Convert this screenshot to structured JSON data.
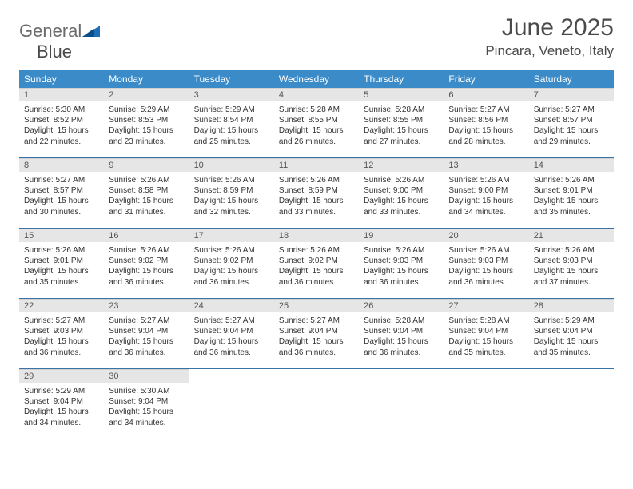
{
  "logo": {
    "general": "General",
    "blue": "Blue"
  },
  "title": "June 2025",
  "location": "Pincara, Veneto, Italy",
  "colors": {
    "header_bg": "#3b8bc9",
    "header_text": "#ffffff",
    "daynum_bg": "#e6e6e6",
    "rule": "#3b72a8",
    "logo_gray": "#6b6b6b",
    "logo_blue": "#1d6fb8",
    "title_gray": "#4a4a4a"
  },
  "day_headers": [
    "Sunday",
    "Monday",
    "Tuesday",
    "Wednesday",
    "Thursday",
    "Friday",
    "Saturday"
  ],
  "weeks": [
    [
      {
        "num": "1",
        "sunrise": "5:30 AM",
        "sunset": "8:52 PM",
        "daylight": "15 hours and 22 minutes."
      },
      {
        "num": "2",
        "sunrise": "5:29 AM",
        "sunset": "8:53 PM",
        "daylight": "15 hours and 23 minutes."
      },
      {
        "num": "3",
        "sunrise": "5:29 AM",
        "sunset": "8:54 PM",
        "daylight": "15 hours and 25 minutes."
      },
      {
        "num": "4",
        "sunrise": "5:28 AM",
        "sunset": "8:55 PM",
        "daylight": "15 hours and 26 minutes."
      },
      {
        "num": "5",
        "sunrise": "5:28 AM",
        "sunset": "8:55 PM",
        "daylight": "15 hours and 27 minutes."
      },
      {
        "num": "6",
        "sunrise": "5:27 AM",
        "sunset": "8:56 PM",
        "daylight": "15 hours and 28 minutes."
      },
      {
        "num": "7",
        "sunrise": "5:27 AM",
        "sunset": "8:57 PM",
        "daylight": "15 hours and 29 minutes."
      }
    ],
    [
      {
        "num": "8",
        "sunrise": "5:27 AM",
        "sunset": "8:57 PM",
        "daylight": "15 hours and 30 minutes."
      },
      {
        "num": "9",
        "sunrise": "5:26 AM",
        "sunset": "8:58 PM",
        "daylight": "15 hours and 31 minutes."
      },
      {
        "num": "10",
        "sunrise": "5:26 AM",
        "sunset": "8:59 PM",
        "daylight": "15 hours and 32 minutes."
      },
      {
        "num": "11",
        "sunrise": "5:26 AM",
        "sunset": "8:59 PM",
        "daylight": "15 hours and 33 minutes."
      },
      {
        "num": "12",
        "sunrise": "5:26 AM",
        "sunset": "9:00 PM",
        "daylight": "15 hours and 33 minutes."
      },
      {
        "num": "13",
        "sunrise": "5:26 AM",
        "sunset": "9:00 PM",
        "daylight": "15 hours and 34 minutes."
      },
      {
        "num": "14",
        "sunrise": "5:26 AM",
        "sunset": "9:01 PM",
        "daylight": "15 hours and 35 minutes."
      }
    ],
    [
      {
        "num": "15",
        "sunrise": "5:26 AM",
        "sunset": "9:01 PM",
        "daylight": "15 hours and 35 minutes."
      },
      {
        "num": "16",
        "sunrise": "5:26 AM",
        "sunset": "9:02 PM",
        "daylight": "15 hours and 36 minutes."
      },
      {
        "num": "17",
        "sunrise": "5:26 AM",
        "sunset": "9:02 PM",
        "daylight": "15 hours and 36 minutes."
      },
      {
        "num": "18",
        "sunrise": "5:26 AM",
        "sunset": "9:02 PM",
        "daylight": "15 hours and 36 minutes."
      },
      {
        "num": "19",
        "sunrise": "5:26 AM",
        "sunset": "9:03 PM",
        "daylight": "15 hours and 36 minutes."
      },
      {
        "num": "20",
        "sunrise": "5:26 AM",
        "sunset": "9:03 PM",
        "daylight": "15 hours and 36 minutes."
      },
      {
        "num": "21",
        "sunrise": "5:26 AM",
        "sunset": "9:03 PM",
        "daylight": "15 hours and 37 minutes."
      }
    ],
    [
      {
        "num": "22",
        "sunrise": "5:27 AM",
        "sunset": "9:03 PM",
        "daylight": "15 hours and 36 minutes."
      },
      {
        "num": "23",
        "sunrise": "5:27 AM",
        "sunset": "9:04 PM",
        "daylight": "15 hours and 36 minutes."
      },
      {
        "num": "24",
        "sunrise": "5:27 AM",
        "sunset": "9:04 PM",
        "daylight": "15 hours and 36 minutes."
      },
      {
        "num": "25",
        "sunrise": "5:27 AM",
        "sunset": "9:04 PM",
        "daylight": "15 hours and 36 minutes."
      },
      {
        "num": "26",
        "sunrise": "5:28 AM",
        "sunset": "9:04 PM",
        "daylight": "15 hours and 36 minutes."
      },
      {
        "num": "27",
        "sunrise": "5:28 AM",
        "sunset": "9:04 PM",
        "daylight": "15 hours and 35 minutes."
      },
      {
        "num": "28",
        "sunrise": "5:29 AM",
        "sunset": "9:04 PM",
        "daylight": "15 hours and 35 minutes."
      }
    ],
    [
      {
        "num": "29",
        "sunrise": "5:29 AM",
        "sunset": "9:04 PM",
        "daylight": "15 hours and 34 minutes."
      },
      {
        "num": "30",
        "sunrise": "5:30 AM",
        "sunset": "9:04 PM",
        "daylight": "15 hours and 34 minutes."
      },
      null,
      null,
      null,
      null,
      null
    ]
  ],
  "labels": {
    "sunrise": "Sunrise: ",
    "sunset": "Sunset: ",
    "daylight": "Daylight: "
  }
}
